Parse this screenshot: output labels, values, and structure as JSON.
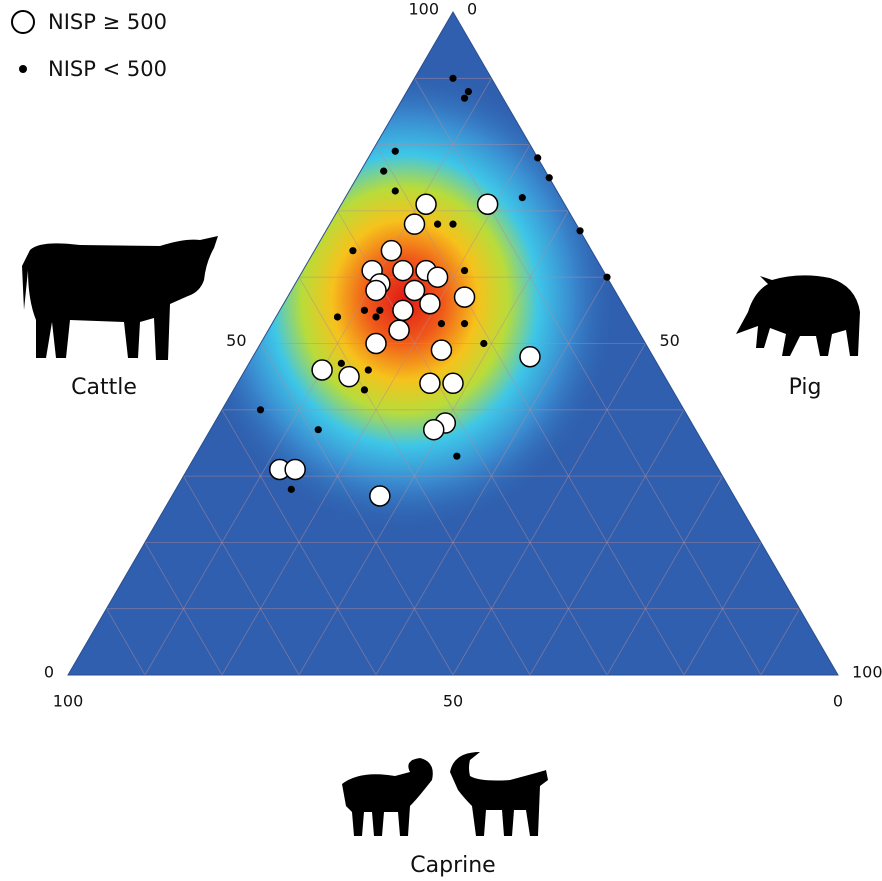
{
  "chart_data": {
    "type": "ternary",
    "axes": {
      "left": {
        "label": "Cattle",
        "ticks": [
          100,
          50,
          0
        ]
      },
      "right": {
        "label": "Pig",
        "ticks": [
          0,
          50,
          100
        ]
      },
      "bottom": {
        "label": "Caprine",
        "ticks": [
          100,
          50,
          0
        ]
      }
    },
    "grid": true,
    "legend": "top-left",
    "series": [
      {
        "name": "NISP ≥ 500",
        "color": "#ffffff",
        "marker": "large",
        "cattle": [
          71,
          71,
          68,
          64,
          61,
          61,
          61,
          60,
          59,
          58,
          58,
          56,
          57,
          55,
          52,
          50,
          49,
          48,
          46,
          45,
          44,
          44,
          38,
          37,
          31,
          31,
          27
        ],
        "pig": [
          19,
          11,
          11,
          10,
          9,
          13,
          16,
          18,
          11,
          16,
          11,
          19,
          23,
          16,
          17,
          15,
          24,
          36,
          10,
          14,
          28,
          25,
          30,
          29,
          12,
          14,
          27
        ],
        "caprine": [
          10,
          18,
          21,
          26,
          30,
          26,
          23,
          22,
          30,
          26,
          31,
          25,
          20,
          29,
          31,
          35,
          27,
          16,
          44,
          41,
          28,
          31,
          32,
          34,
          57,
          55,
          46
        ]
      },
      {
        "name": "NISP < 500",
        "color": "#000000",
        "marker": "small",
        "cattle": [
          90,
          88,
          87,
          79,
          76,
          73,
          78,
          75,
          72,
          67,
          60,
          68,
          68,
          64,
          61,
          55,
          54,
          55,
          54,
          53,
          53,
          50,
          47,
          46,
          43,
          40,
          37,
          33,
          28
        ],
        "pig": [
          5,
          8,
          8,
          3,
          3,
          6,
          22,
          25,
          23,
          33,
          40,
          14,
          16,
          5,
          21,
          11,
          13,
          13,
          8,
          22,
          25,
          29,
          12,
          16,
          17,
          5,
          14,
          34,
          15
        ],
        "caprine": [
          5,
          4,
          5,
          18,
          21,
          21,
          0,
          0,
          5,
          0,
          0,
          18,
          16,
          31,
          18,
          34,
          33,
          32,
          38,
          25,
          22,
          21,
          41,
          38,
          40,
          55,
          49,
          33,
          57
        ]
      }
    ]
  }
}
